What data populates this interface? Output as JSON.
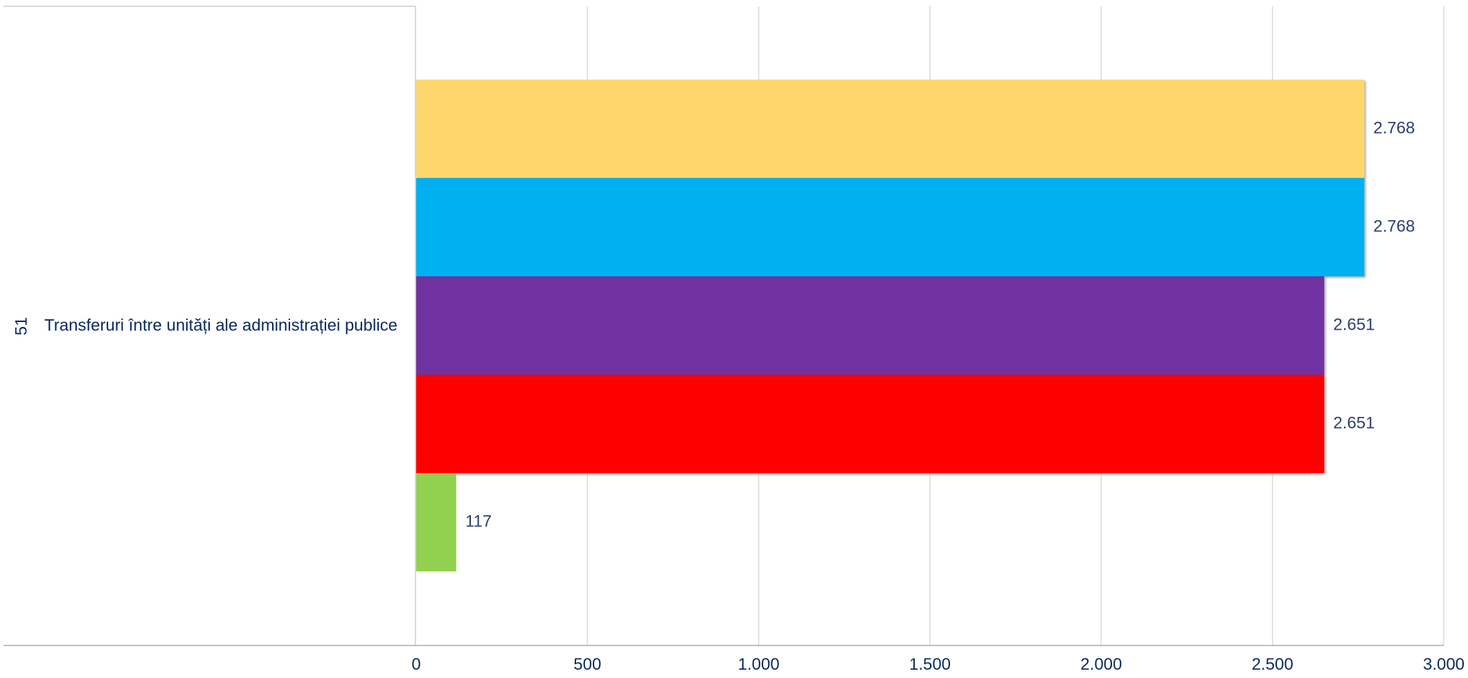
{
  "chart_data": {
    "type": "bar",
    "orientation": "horizontal",
    "categories": [
      "Transferuri între unități ale administrației publice"
    ],
    "category_codes": [
      "51"
    ],
    "series": [
      {
        "values": [
          2768
        ],
        "color": "#FDD76C",
        "label": "2.768"
      },
      {
        "values": [
          2768
        ],
        "color": "#00B0F0",
        "label": "2.768"
      },
      {
        "values": [
          2651
        ],
        "color": "#7030A0",
        "label": "2.651"
      },
      {
        "values": [
          2651
        ],
        "color": "#FF0000",
        "label": "2.651"
      },
      {
        "values": [
          117
        ],
        "color": "#92D050",
        "label": "117"
      }
    ],
    "x_ticks": [
      "0",
      "500",
      "1.000",
      "1.500",
      "2.000",
      "2.500",
      "3.000"
    ],
    "xlim": [
      0,
      3000
    ],
    "grid": "vertical",
    "legend": "none"
  }
}
